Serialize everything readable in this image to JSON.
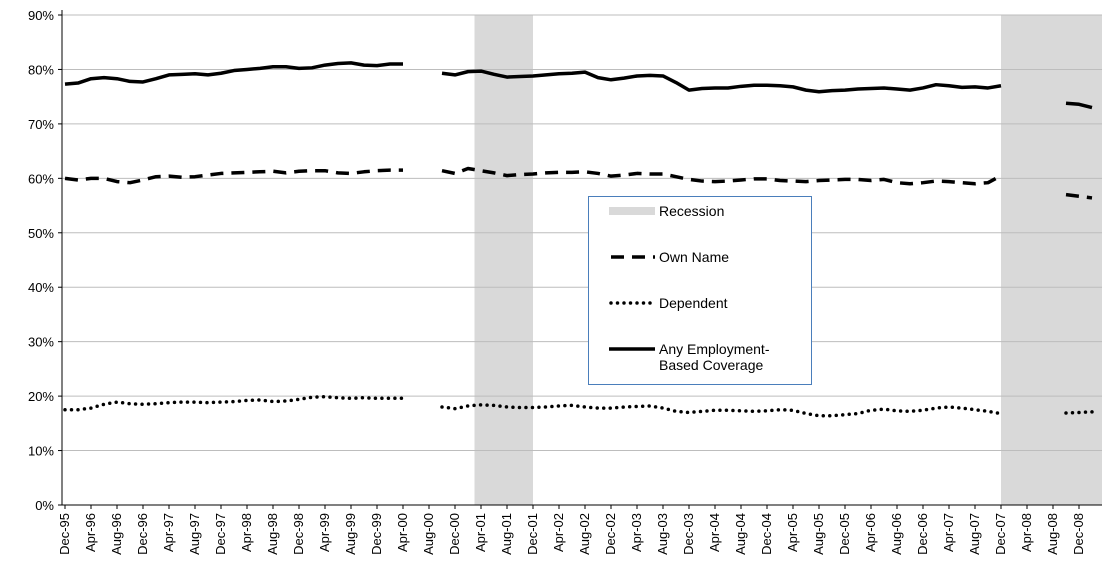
{
  "chart_data": {
    "type": "line",
    "categories": [
      "Dec-95",
      null,
      "Apr-96",
      null,
      "Aug-96",
      null,
      "Dec-96",
      null,
      "Apr-97",
      null,
      "Aug-97",
      null,
      "Dec-97",
      null,
      "Apr-98",
      null,
      "Aug-98",
      null,
      "Dec-98",
      null,
      "Apr-99",
      null,
      "Aug-99",
      null,
      "Dec-99",
      null,
      "Apr-00",
      null,
      "Aug-00",
      null,
      "Dec-00",
      null,
      "Apr-01",
      null,
      "Aug-01",
      null,
      "Dec-01",
      null,
      "Apr-02",
      null,
      "Aug-02",
      null,
      "Dec-02",
      null,
      "Apr-03",
      null,
      "Aug-03",
      null,
      "Dec-03",
      null,
      "Apr-04",
      null,
      "Aug-04",
      null,
      "Dec-04",
      null,
      "Apr-05",
      null,
      "Aug-05",
      null,
      "Dec-05",
      null,
      "Apr-06",
      null,
      "Aug-06",
      null,
      "Dec-06",
      null,
      "Apr-07",
      null,
      "Aug-07",
      null,
      "Dec-07",
      null,
      "Apr-08",
      null,
      "Aug-08",
      null,
      "Dec-08",
      null
    ],
    "series": [
      {
        "name": "Own Name",
        "color": "#000000",
        "style": "dashed",
        "values": [
          60.0,
          59.7,
          60.0,
          60.0,
          59.4,
          59.2,
          59.7,
          60.3,
          60.4,
          60.2,
          60.3,
          60.6,
          60.9,
          61.0,
          61.1,
          61.2,
          61.3,
          61.0,
          61.3,
          61.4,
          61.4,
          61.0,
          60.9,
          61.2,
          61.4,
          61.5,
          61.5,
          null,
          null,
          61.4,
          60.9,
          61.8,
          61.4,
          61.0,
          60.5,
          60.7,
          60.8,
          61.0,
          61.1,
          61.1,
          61.2,
          60.9,
          60.4,
          60.6,
          60.9,
          60.8,
          60.8,
          60.3,
          59.8,
          59.5,
          59.4,
          59.5,
          59.7,
          59.9,
          59.9,
          59.6,
          59.5,
          59.4,
          59.6,
          59.7,
          59.8,
          59.8,
          59.6,
          59.8,
          59.2,
          59.0,
          59.2,
          59.5,
          59.4,
          59.2,
          59.0,
          59.2,
          60.5,
          null,
          null,
          null,
          null,
          57.0,
          56.7,
          56.4
        ]
      },
      {
        "name": "Dependent",
        "color": "#000000",
        "style": "dotted",
        "values": [
          17.5,
          17.5,
          17.8,
          18.5,
          18.9,
          18.6,
          18.5,
          18.6,
          18.8,
          18.9,
          18.9,
          18.8,
          18.9,
          19.0,
          19.2,
          19.3,
          19.0,
          19.1,
          19.4,
          19.8,
          19.9,
          19.7,
          19.6,
          19.7,
          19.6,
          19.6,
          19.6,
          null,
          null,
          18.0,
          17.7,
          18.2,
          18.4,
          18.3,
          18.0,
          17.9,
          17.9,
          18.0,
          18.2,
          18.3,
          18.0,
          17.8,
          17.8,
          18.0,
          18.1,
          18.2,
          17.8,
          17.2,
          17.0,
          17.2,
          17.4,
          17.4,
          17.3,
          17.2,
          17.3,
          17.5,
          17.4,
          16.8,
          16.4,
          16.4,
          16.6,
          16.8,
          17.4,
          17.6,
          17.3,
          17.2,
          17.4,
          17.8,
          18.0,
          17.8,
          17.5,
          17.2,
          16.8,
          null,
          null,
          null,
          null,
          16.9,
          17.0,
          17.1
        ]
      },
      {
        "name": "Any Employment-Based Coverage",
        "color": "#000000",
        "style": "solid",
        "values": [
          77.3,
          77.5,
          78.3,
          78.5,
          78.3,
          77.8,
          77.7,
          78.3,
          79.0,
          79.1,
          79.2,
          79.0,
          79.3,
          79.8,
          80.0,
          80.2,
          80.5,
          80.5,
          80.2,
          80.3,
          80.8,
          81.1,
          81.2,
          80.8,
          80.7,
          81.0,
          81.0,
          null,
          null,
          79.3,
          79.0,
          79.6,
          79.7,
          79.1,
          78.6,
          78.7,
          78.8,
          79.0,
          79.2,
          79.3,
          79.5,
          78.5,
          78.1,
          78.4,
          78.8,
          78.9,
          78.8,
          77.6,
          76.2,
          76.5,
          76.6,
          76.6,
          76.9,
          77.1,
          77.1,
          77.0,
          76.8,
          76.2,
          75.9,
          76.1,
          76.2,
          76.4,
          76.5,
          76.6,
          76.4,
          76.2,
          76.6,
          77.2,
          77.0,
          76.7,
          76.8,
          76.6,
          77.0,
          null,
          null,
          null,
          null,
          73.8,
          73.6,
          73.0
        ]
      }
    ],
    "recession": {
      "name": "Recession",
      "color": "#d9d9d9",
      "ranges": [
        [
          31.5,
          36
        ],
        [
          72,
          79.8
        ]
      ]
    },
    "ylim": [
      0,
      90
    ],
    "yticks": [
      {
        "value": 0,
        "label": "0%"
      },
      {
        "value": 10,
        "label": "10%"
      },
      {
        "value": 20,
        "label": "20%"
      },
      {
        "value": 30,
        "label": "30%"
      },
      {
        "value": 40,
        "label": "40%"
      },
      {
        "value": 50,
        "label": "50%"
      },
      {
        "value": 60,
        "label": "60%"
      },
      {
        "value": 70,
        "label": "70%"
      },
      {
        "value": 80,
        "label": "80%"
      },
      {
        "value": 90,
        "label": "90%"
      }
    ],
    "grid": true
  }
}
